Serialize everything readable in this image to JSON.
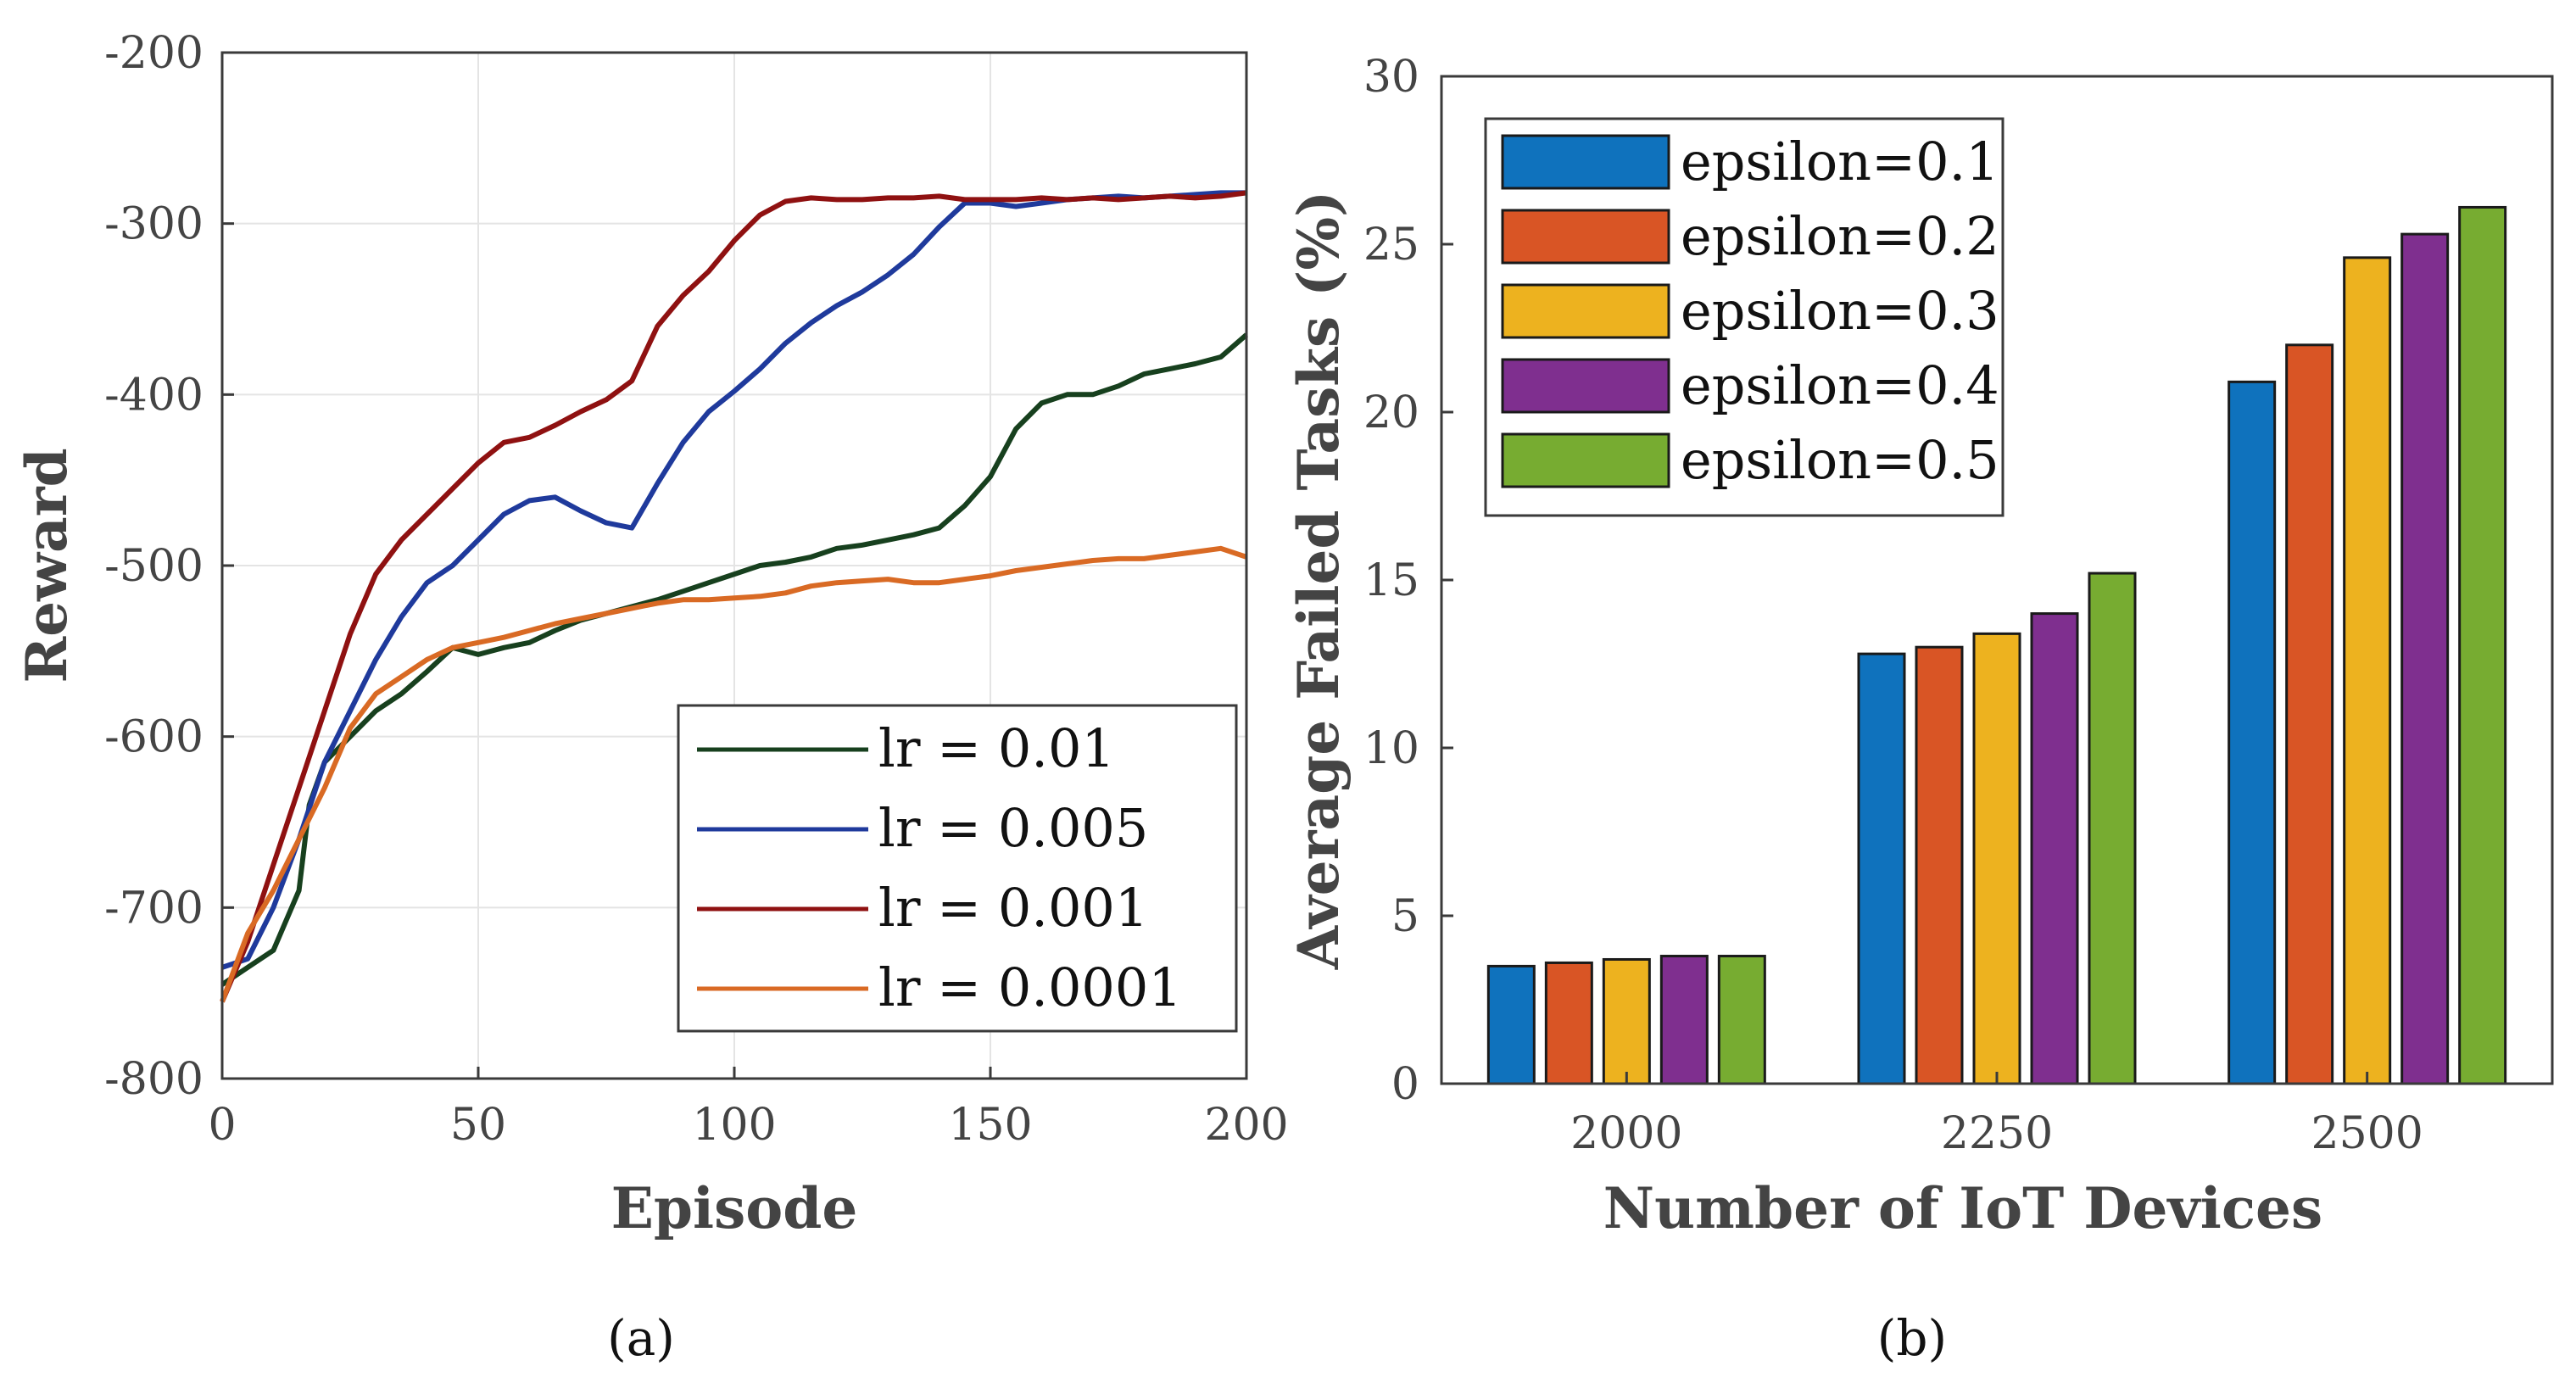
{
  "panels": {
    "a": {
      "caption": "(a)"
    },
    "b": {
      "caption": "(b)"
    }
  },
  "chart_data": [
    {
      "type": "line",
      "xlabel": "Episode",
      "ylabel": "Reward",
      "xlim": [
        0,
        200
      ],
      "ylim": [
        -800,
        -200
      ],
      "xticks": [
        0,
        50,
        100,
        150,
        200
      ],
      "yticks": [
        -800,
        -700,
        -600,
        -500,
        -400,
        -300,
        -200
      ],
      "xtick_labels": [
        "0",
        "50",
        "100",
        "150",
        "200"
      ],
      "ytick_labels": [
        "-800",
        "-700",
        "-600",
        "-500",
        "-400",
        "-300",
        "-200"
      ],
      "grid": true,
      "legend_position": "bottom-right",
      "series": [
        {
          "name": "lr = 0.01",
          "color": "#17401e",
          "points": [
            [
              0,
              -745
            ],
            [
              5,
              -735
            ],
            [
              10,
              -725
            ],
            [
              15,
              -690
            ],
            [
              17,
              -640
            ],
            [
              20,
              -615
            ],
            [
              25,
              -600
            ],
            [
              30,
              -585
            ],
            [
              35,
              -575
            ],
            [
              40,
              -562
            ],
            [
              45,
              -548
            ],
            [
              50,
              -552
            ],
            [
              55,
              -548
            ],
            [
              60,
              -545
            ],
            [
              65,
              -538
            ],
            [
              70,
              -532
            ],
            [
              75,
              -528
            ],
            [
              80,
              -524
            ],
            [
              85,
              -520
            ],
            [
              90,
              -515
            ],
            [
              95,
              -510
            ],
            [
              100,
              -505
            ],
            [
              105,
              -500
            ],
            [
              110,
              -498
            ],
            [
              115,
              -495
            ],
            [
              120,
              -490
            ],
            [
              125,
              -488
            ],
            [
              130,
              -485
            ],
            [
              135,
              -482
            ],
            [
              140,
              -478
            ],
            [
              145,
              -465
            ],
            [
              150,
              -448
            ],
            [
              155,
              -420
            ],
            [
              160,
              -405
            ],
            [
              165,
              -400
            ],
            [
              170,
              -400
            ],
            [
              175,
              -395
            ],
            [
              180,
              -388
            ],
            [
              185,
              -385
            ],
            [
              190,
              -382
            ],
            [
              195,
              -378
            ],
            [
              200,
              -365
            ]
          ]
        },
        {
          "name": "lr = 0.005",
          "color": "#1f3a9c",
          "points": [
            [
              0,
              -735
            ],
            [
              5,
              -730
            ],
            [
              10,
              -700
            ],
            [
              15,
              -660
            ],
            [
              20,
              -615
            ],
            [
              25,
              -585
            ],
            [
              30,
              -555
            ],
            [
              35,
              -530
            ],
            [
              40,
              -510
            ],
            [
              45,
              -500
            ],
            [
              50,
              -485
            ],
            [
              55,
              -470
            ],
            [
              60,
              -462
            ],
            [
              65,
              -460
            ],
            [
              70,
              -468
            ],
            [
              75,
              -475
            ],
            [
              80,
              -478
            ],
            [
              85,
              -452
            ],
            [
              90,
              -428
            ],
            [
              95,
              -410
            ],
            [
              100,
              -398
            ],
            [
              105,
              -385
            ],
            [
              110,
              -370
            ],
            [
              115,
              -358
            ],
            [
              120,
              -348
            ],
            [
              125,
              -340
            ],
            [
              130,
              -330
            ],
            [
              135,
              -318
            ],
            [
              140,
              -302
            ],
            [
              145,
              -288
            ],
            [
              150,
              -288
            ],
            [
              155,
              -290
            ],
            [
              160,
              -288
            ],
            [
              165,
              -286
            ],
            [
              170,
              -285
            ],
            [
              175,
              -284
            ],
            [
              180,
              -285
            ],
            [
              185,
              -284
            ],
            [
              190,
              -283
            ],
            [
              195,
              -282
            ],
            [
              200,
              -282
            ]
          ]
        },
        {
          "name": "lr = 0.001",
          "color": "#8f1111",
          "points": [
            [
              0,
              -755
            ],
            [
              5,
              -720
            ],
            [
              10,
              -675
            ],
            [
              15,
              -630
            ],
            [
              20,
              -585
            ],
            [
              25,
              -540
            ],
            [
              30,
              -505
            ],
            [
              35,
              -485
            ],
            [
              40,
              -470
            ],
            [
              45,
              -455
            ],
            [
              50,
              -440
            ],
            [
              55,
              -428
            ],
            [
              60,
              -425
            ],
            [
              65,
              -418
            ],
            [
              70,
              -410
            ],
            [
              75,
              -403
            ],
            [
              80,
              -392
            ],
            [
              85,
              -360
            ],
            [
              90,
              -342
            ],
            [
              95,
              -328
            ],
            [
              100,
              -310
            ],
            [
              105,
              -295
            ],
            [
              110,
              -287
            ],
            [
              115,
              -285
            ],
            [
              120,
              -286
            ],
            [
              125,
              -286
            ],
            [
              130,
              -285
            ],
            [
              135,
              -285
            ],
            [
              140,
              -284
            ],
            [
              145,
              -286
            ],
            [
              150,
              -286
            ],
            [
              155,
              -286
            ],
            [
              160,
              -285
            ],
            [
              165,
              -286
            ],
            [
              170,
              -285
            ],
            [
              175,
              -286
            ],
            [
              180,
              -285
            ],
            [
              185,
              -284
            ],
            [
              190,
              -285
            ],
            [
              195,
              -284
            ],
            [
              200,
              -282
            ]
          ]
        },
        {
          "name": "lr = 0.0001",
          "color": "#d96a24",
          "points": [
            [
              0,
              -755
            ],
            [
              5,
              -715
            ],
            [
              10,
              -690
            ],
            [
              15,
              -660
            ],
            [
              20,
              -630
            ],
            [
              25,
              -595
            ],
            [
              30,
              -575
            ],
            [
              35,
              -565
            ],
            [
              40,
              -555
            ],
            [
              45,
              -548
            ],
            [
              50,
              -545
            ],
            [
              55,
              -542
            ],
            [
              60,
              -538
            ],
            [
              65,
              -534
            ],
            [
              70,
              -531
            ],
            [
              75,
              -528
            ],
            [
              80,
              -525
            ],
            [
              85,
              -522
            ],
            [
              90,
              -520
            ],
            [
              95,
              -520
            ],
            [
              100,
              -519
            ],
            [
              105,
              -518
            ],
            [
              110,
              -516
            ],
            [
              115,
              -512
            ],
            [
              120,
              -510
            ],
            [
              125,
              -509
            ],
            [
              130,
              -508
            ],
            [
              135,
              -510
            ],
            [
              140,
              -510
            ],
            [
              145,
              -508
            ],
            [
              150,
              -506
            ],
            [
              155,
              -503
            ],
            [
              160,
              -501
            ],
            [
              165,
              -499
            ],
            [
              170,
              -497
            ],
            [
              175,
              -496
            ],
            [
              180,
              -496
            ],
            [
              185,
              -494
            ],
            [
              190,
              -492
            ],
            [
              195,
              -490
            ],
            [
              200,
              -495
            ]
          ]
        }
      ]
    },
    {
      "type": "bar",
      "xlabel": "Number of IoT Devices",
      "ylabel": "Average Failed Tasks (%)",
      "categories": [
        "2000",
        "2250",
        "2500"
      ],
      "ylim": [
        0,
        30
      ],
      "yticks": [
        0,
        5,
        10,
        15,
        20,
        25,
        30
      ],
      "ytick_labels": [
        "0",
        "5",
        "10",
        "15",
        "20",
        "25",
        "30"
      ],
      "grid": false,
      "legend_position": "top-left",
      "series": [
        {
          "name": "epsilon=0.1",
          "color": "#0f72bd",
          "values": [
            3.5,
            12.8,
            20.9
          ]
        },
        {
          "name": "epsilon=0.2",
          "color": "#d95525",
          "values": [
            3.6,
            13.0,
            22.0
          ]
        },
        {
          "name": "epsilon=0.3",
          "color": "#edb21f",
          "values": [
            3.7,
            13.4,
            24.6
          ]
        },
        {
          "name": "epsilon=0.4",
          "color": "#7f2f8f",
          "values": [
            3.8,
            14.0,
            25.3
          ]
        },
        {
          "name": "epsilon=0.5",
          "color": "#77ac31",
          "values": [
            3.8,
            15.2,
            26.1
          ]
        }
      ]
    }
  ]
}
